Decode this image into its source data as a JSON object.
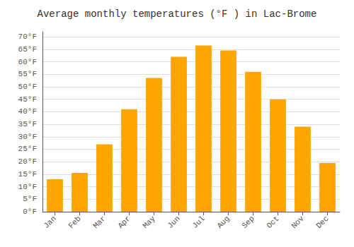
{
  "chart_data": {
    "type": "bar",
    "title": "Average monthly temperatures (°F ) in Lac-Brome",
    "categories": [
      "Jan",
      "Feb",
      "Mar",
      "Apr",
      "May",
      "Jun",
      "Jul",
      "Aug",
      "Sep",
      "Oct",
      "Nov",
      "Dec"
    ],
    "values": [
      13,
      15.5,
      27,
      41,
      53.5,
      62,
      66.5,
      64.5,
      56,
      45,
      34,
      19.5
    ],
    "color": "#FFA500",
    "ylim": [
      0,
      72
    ],
    "yticks": [
      {
        "value": 0,
        "label": "0°F"
      },
      {
        "value": 5,
        "label": "5°F"
      },
      {
        "value": 10,
        "label": "10°F"
      },
      {
        "value": 15,
        "label": "15°F"
      },
      {
        "value": 20,
        "label": "20°F"
      },
      {
        "value": 25,
        "label": "25°F"
      },
      {
        "value": 30,
        "label": "30°F"
      },
      {
        "value": 35,
        "label": "35°F"
      },
      {
        "value": 40,
        "label": "40°F"
      },
      {
        "value": 45,
        "label": "45°F"
      },
      {
        "value": 50,
        "label": "50°F"
      },
      {
        "value": 55,
        "label": "55°F"
      },
      {
        "value": 60,
        "label": "60°F"
      },
      {
        "value": 65,
        "label": "65°F"
      },
      {
        "value": 70,
        "label": "70°F"
      }
    ],
    "grid": true
  }
}
